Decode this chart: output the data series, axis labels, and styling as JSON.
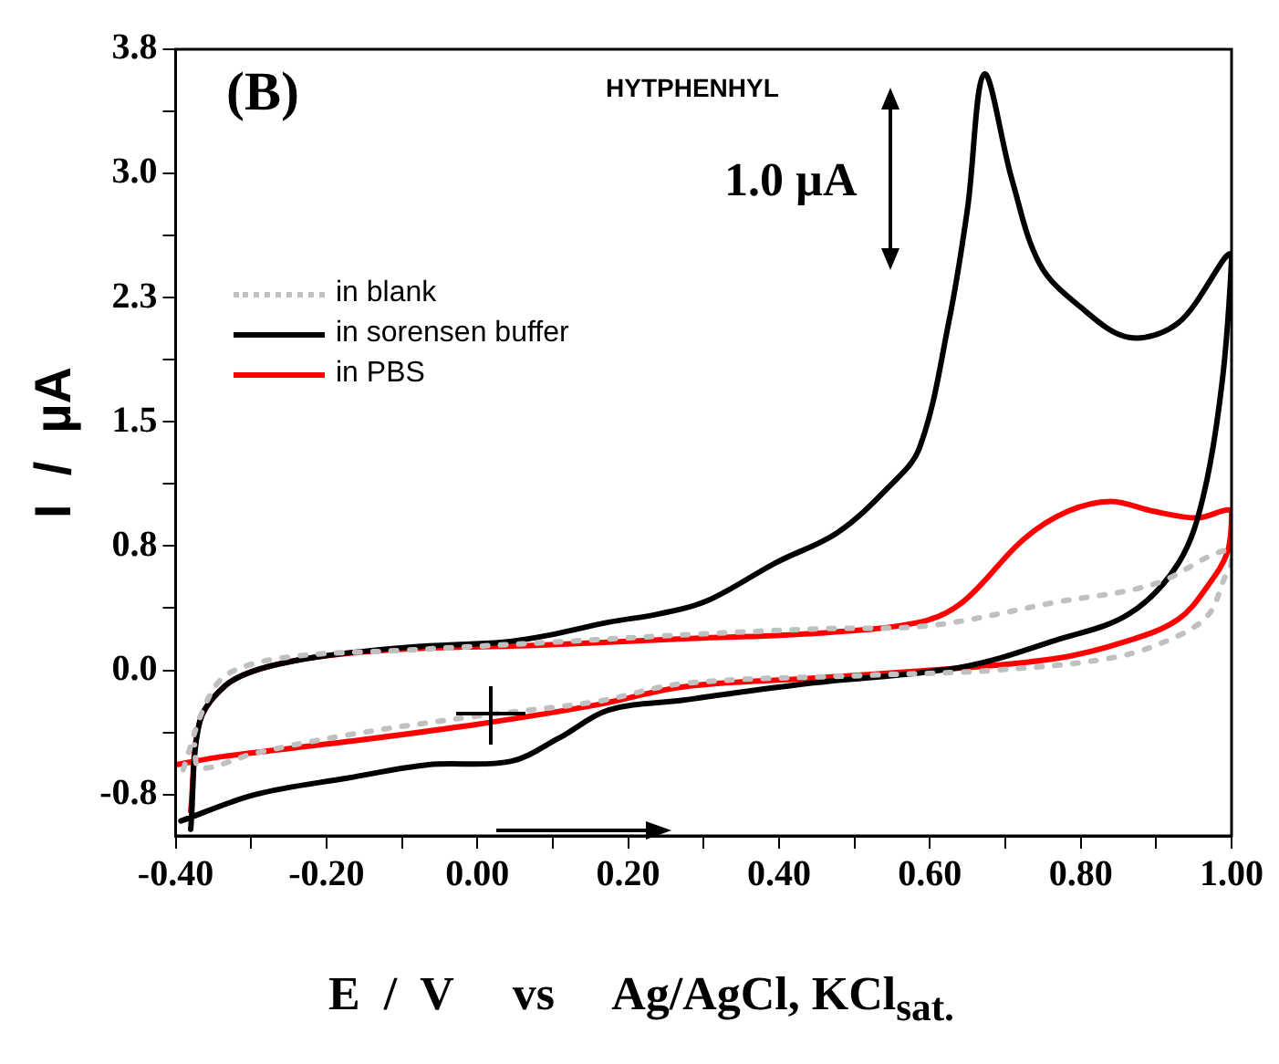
{
  "chart_data": {
    "type": "line",
    "xlabel": "E  /  V     vs     Ag/AgCl, KCl$_{sat.}$",
    "ylabel": "I  /  µA",
    "annotations": [
      "(B)",
      "HYTPHENHYL",
      "1.0 µA"
    ],
    "xlim": [
      -0.4,
      1.0
    ],
    "xticks": [
      {
        "value": -0.4,
        "label": "-0.40"
      },
      {
        "value": -0.3,
        "label": null
      },
      {
        "value": -0.2,
        "label": "-0.20"
      },
      {
        "value": -0.1,
        "label": null
      },
      {
        "value": 0,
        "label": "0.00"
      },
      {
        "value": 0.1,
        "label": null
      },
      {
        "value": 0.2,
        "label": "0.20"
      },
      {
        "value": 0.3,
        "label": null
      },
      {
        "value": 0.4,
        "label": "0.40"
      },
      {
        "value": 0.5,
        "label": null
      },
      {
        "value": 0.6,
        "label": "0.60"
      },
      {
        "value": 0.7,
        "label": null
      },
      {
        "value": 0.8,
        "label": "0.80"
      },
      {
        "value": 0.9,
        "label": null
      },
      {
        "value": 1.0,
        "label": "1.00"
      }
    ],
    "ylim": [
      -1.0,
      3.75
    ],
    "yticks": [
      {
        "value": -0.75,
        "label": "-0.8"
      },
      {
        "value": -0.375,
        "label": null
      },
      {
        "value": 0,
        "label": "0.0"
      },
      {
        "value": 0.375,
        "label": null
      },
      {
        "value": 0.75,
        "label": "0.8"
      },
      {
        "value": 1.125,
        "label": null
      },
      {
        "value": 1.5,
        "label": "1.5"
      },
      {
        "value": 1.875,
        "label": null
      },
      {
        "value": 2.25,
        "label": "2.3"
      },
      {
        "value": 2.625,
        "label": null
      },
      {
        "value": 3.0,
        "label": "3.0"
      },
      {
        "value": 3.375,
        "label": null
      },
      {
        "value": 3.75,
        "label": "3.8"
      }
    ],
    "grid": false,
    "legend": "top left",
    "marker": "none",
    "series": [
      {
        "name": "in blank",
        "color": "#c0c0c0",
        "line_style": "dotted",
        "x": [
          -0.39,
          -0.36,
          -0.33,
          -0.25,
          -0.1,
          0.1,
          0.3,
          0.45,
          0.6,
          0.766,
          0.897,
          0.988,
          1.0,
          0.99,
          0.97,
          0.93,
          0.847,
          0.684,
          0.52,
          0.273,
          0.157,
          -0.006,
          -0.171,
          -0.294,
          -0.368,
          -0.375
        ],
        "values": [
          -0.6,
          -0.2,
          -0.02,
          0.08,
          0.12,
          0.17,
          0.22,
          0.25,
          0.27,
          0.41,
          0.52,
          0.72,
          0.66,
          0.55,
          0.34,
          0.21,
          0.08,
          0.0,
          -0.03,
          -0.08,
          -0.19,
          -0.28,
          -0.39,
          -0.5,
          -0.59,
          -0.45
        ]
      },
      {
        "name": "in sorensen buffer",
        "color": "#000000",
        "line_style": "solid",
        "x": [
          -0.38,
          -0.368,
          -0.336,
          -0.294,
          -0.213,
          -0.09,
          0.034,
          0.093,
          0.174,
          0.24,
          0.305,
          0.396,
          0.477,
          0.544,
          0.586,
          0.625,
          0.65,
          0.672,
          0.709,
          0.746,
          0.798,
          0.864,
          0.93,
          1.0,
          0.988,
          0.963,
          0.93,
          0.864,
          0.766,
          0.643,
          0.438,
          0.273,
          0.174,
          0.108,
          0.044,
          -0.065,
          -0.171,
          -0.294,
          -0.393
        ],
        "values": [
          -0.96,
          -0.31,
          -0.1,
          0.0,
          0.08,
          0.14,
          0.17,
          0.21,
          0.29,
          0.34,
          0.42,
          0.65,
          0.83,
          1.1,
          1.34,
          2.1,
          2.79,
          3.6,
          2.96,
          2.45,
          2.2,
          2.01,
          2.1,
          2.51,
          1.76,
          1.06,
          0.65,
          0.34,
          0.18,
          0.02,
          -0.08,
          -0.18,
          -0.24,
          -0.41,
          -0.55,
          -0.57,
          -0.65,
          -0.75,
          -0.91
        ]
      },
      {
        "name": "in PBS",
        "color": "#ff0000",
        "line_style": "solid",
        "x": [
          -0.38,
          -0.368,
          -0.336,
          -0.294,
          -0.213,
          -0.09,
          0.076,
          0.273,
          0.438,
          0.586,
          0.643,
          0.724,
          0.783,
          0.84,
          0.897,
          0.955,
          1.0,
          0.995,
          0.97,
          0.93,
          0.864,
          0.766,
          0.6,
          0.438,
          0.273,
          0.157,
          -0.006,
          -0.171,
          -0.336,
          -0.4
        ],
        "values": [
          -0.85,
          -0.31,
          -0.1,
          0.0,
          0.08,
          0.13,
          0.15,
          0.19,
          0.22,
          0.29,
          0.41,
          0.79,
          0.96,
          1.02,
          0.96,
          0.92,
          0.96,
          0.72,
          0.52,
          0.31,
          0.18,
          0.07,
          0.0,
          -0.05,
          -0.1,
          -0.21,
          -0.33,
          -0.43,
          -0.52,
          -0.57
        ]
      }
    ]
  }
}
